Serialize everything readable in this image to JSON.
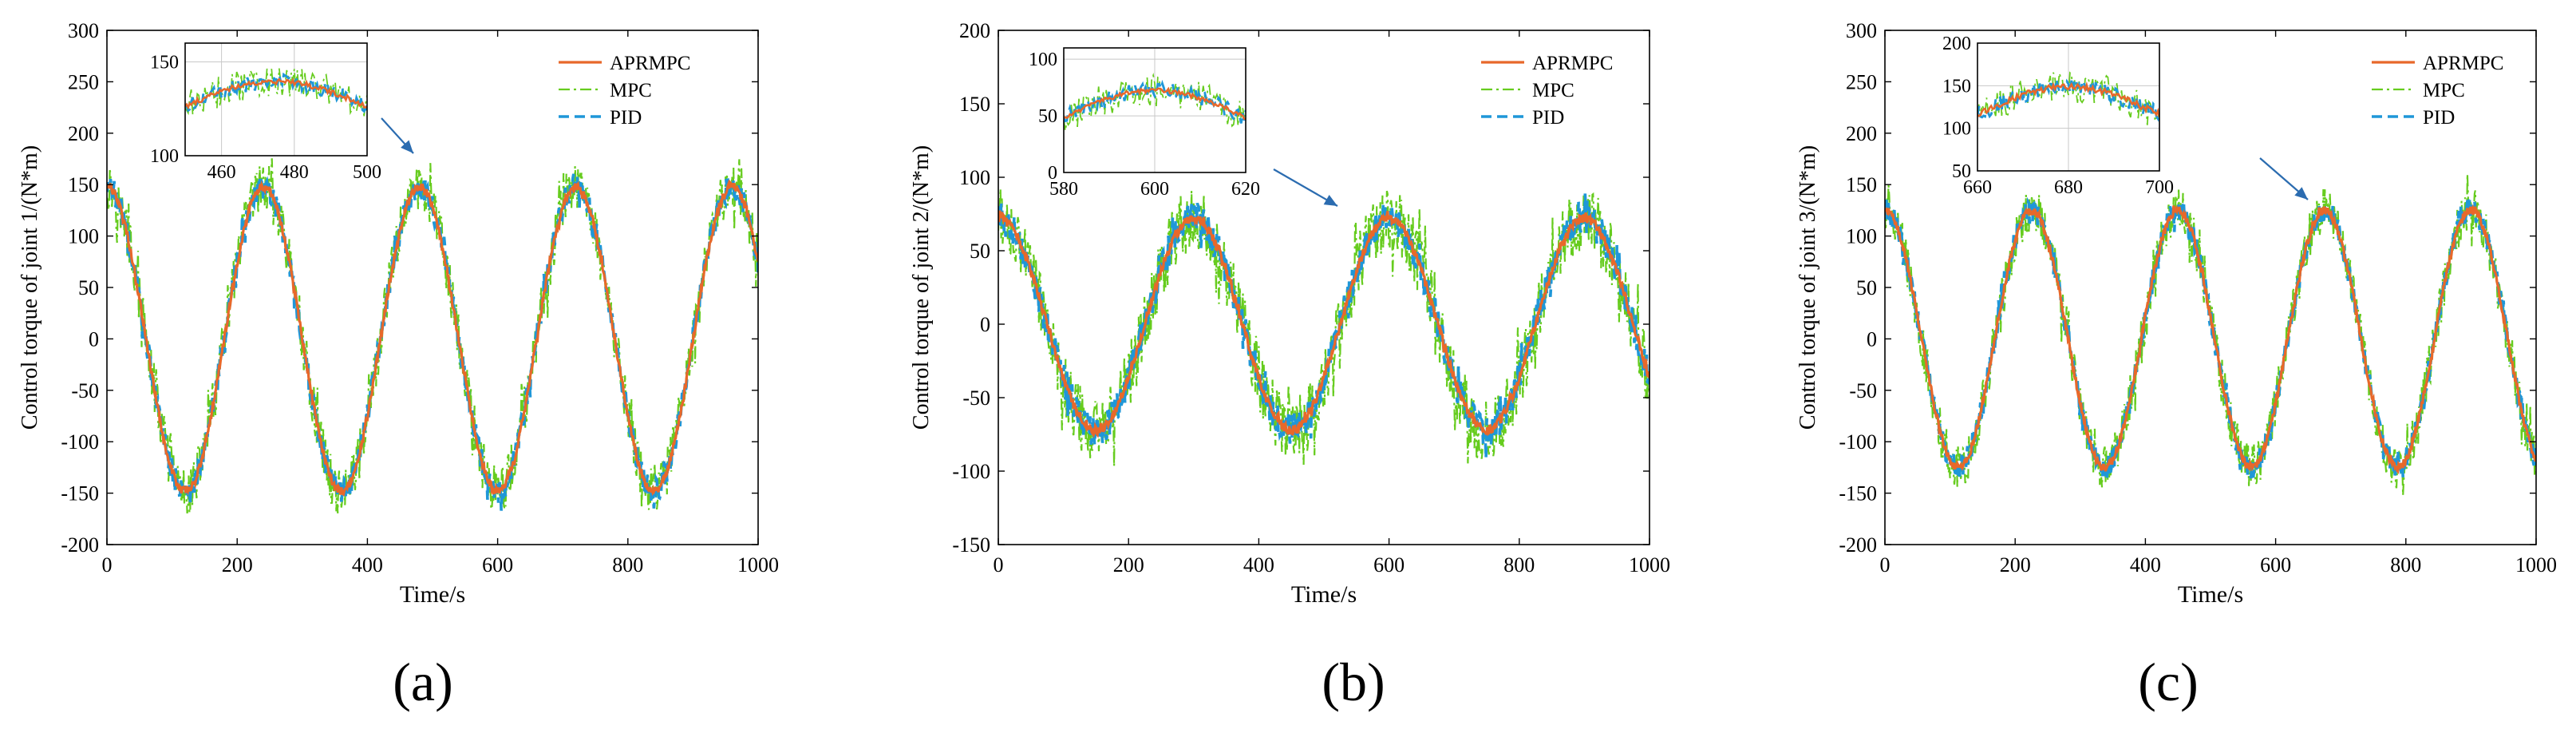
{
  "figure": {
    "colors": {
      "aprmpc": "#e8682a",
      "mpc": "#66cc1e",
      "pid": "#1f97d8",
      "arrow": "#2b6cb0"
    }
  },
  "chart_data": [
    {
      "type": "line",
      "panel_label": "(a)",
      "xlabel": "Time/s",
      "ylabel": "Control torque of joint 1/(N*m)",
      "xlim": [
        0,
        1000
      ],
      "ylim": [
        -200,
        300
      ],
      "xticks": [
        0,
        200,
        400,
        600,
        800,
        1000
      ],
      "yticks": [
        -200,
        -150,
        -100,
        -50,
        0,
        50,
        100,
        150,
        200,
        250,
        300
      ],
      "signal": {
        "amplitude": 148,
        "period": 240,
        "offset": 0,
        "phase": 0,
        "start_value": 148
      },
      "series": [
        {
          "name": "APRMPC",
          "style": "solid",
          "noise_amplitude": 4
        },
        {
          "name": "MPC",
          "style": "dash-dot",
          "noise_amplitude": 24
        },
        {
          "name": "PID",
          "style": "dashed",
          "noise_amplitude": 12
        }
      ],
      "legend": {
        "position": "top-right",
        "entries": [
          "APRMPC",
          "MPC",
          "PID"
        ]
      },
      "inset": {
        "xlim": [
          450,
          500
        ],
        "ylim": [
          100,
          160
        ],
        "xticks": [
          460,
          480,
          500
        ],
        "yticks": [
          100,
          150
        ],
        "grid": true
      }
    },
    {
      "type": "line",
      "panel_label": "(b)",
      "xlabel": "Time/s",
      "ylabel": "Control torque of joint 2/(N*m)",
      "xlim": [
        0,
        1000
      ],
      "ylim": [
        -150,
        200
      ],
      "xticks": [
        0,
        200,
        400,
        600,
        800,
        1000
      ],
      "yticks": [
        -150,
        -100,
        -50,
        0,
        50,
        100,
        150,
        200
      ],
      "signal": {
        "amplitude": 72,
        "period": 300,
        "offset": 0,
        "phase": 0,
        "start_value": 65
      },
      "series": [
        {
          "name": "APRMPC",
          "style": "solid",
          "noise_amplitude": 3
        },
        {
          "name": "MPC",
          "style": "dash-dot",
          "noise_amplitude": 22
        },
        {
          "name": "PID",
          "style": "dashed",
          "noise_amplitude": 11
        }
      ],
      "legend": {
        "position": "top-right",
        "entries": [
          "APRMPC",
          "MPC",
          "PID"
        ]
      },
      "inset": {
        "xlim": [
          580,
          620
        ],
        "ylim": [
          0,
          110
        ],
        "xticks": [
          580,
          600,
          620
        ],
        "yticks": [
          0,
          50,
          100
        ],
        "grid": true
      }
    },
    {
      "type": "line",
      "panel_label": "(c)",
      "xlabel": "Time/s",
      "ylabel": "Control torque of joint 3/(N*m)",
      "xlim": [
        0,
        1000
      ],
      "ylim": [
        -200,
        300
      ],
      "xticks": [
        0,
        200,
        400,
        600,
        800,
        1000
      ],
      "yticks": [
        -200,
        -150,
        -100,
        -50,
        0,
        50,
        100,
        150,
        200,
        250,
        300
      ],
      "signal": {
        "amplitude": 125,
        "period": 225,
        "offset": 0,
        "phase": 0,
        "start_value": 125
      },
      "series": [
        {
          "name": "APRMPC",
          "style": "solid",
          "noise_amplitude": 4
        },
        {
          "name": "MPC",
          "style": "dash-dot",
          "noise_amplitude": 22
        },
        {
          "name": "PID",
          "style": "dashed",
          "noise_amplitude": 11
        }
      ],
      "legend": {
        "position": "top-right",
        "entries": [
          "APRMPC",
          "MPC",
          "PID"
        ]
      },
      "inset": {
        "xlim": [
          660,
          700
        ],
        "ylim": [
          50,
          200
        ],
        "xticks": [
          660,
          680,
          700
        ],
        "yticks": [
          50,
          100,
          150,
          200
        ],
        "grid": true
      }
    }
  ]
}
